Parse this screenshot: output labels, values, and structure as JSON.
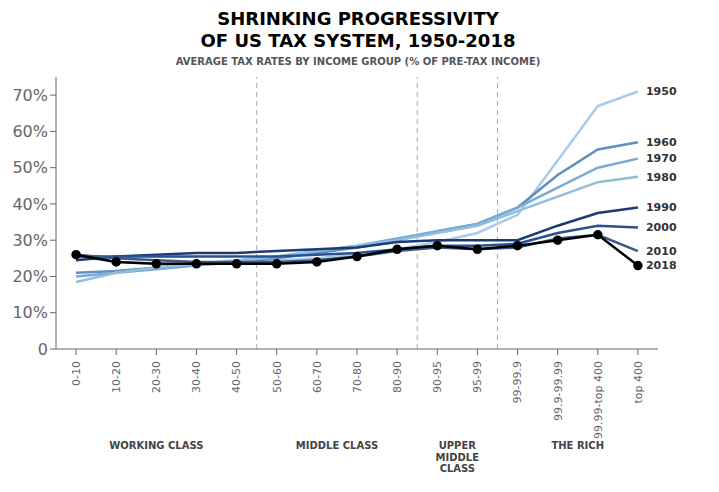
{
  "chart_data": {
    "type": "line",
    "title": "SHRINKING PROGRESSIVITY\nOF US TAX SYSTEM, 1950-2018",
    "subtitle": "AVERAGE TAX RATES BY INCOME GROUP (% OF PRE-TAX INCOME)",
    "annotations": [
      "WORKING CLASS",
      "MIDDLE CLASS",
      "UPPER\nMIDDLE\nCLASS",
      "THE RICH"
    ],
    "categories": [
      "0-10",
      "10-20",
      "20-30",
      "30-40",
      "40-50",
      "50-60",
      "60-70",
      "70-80",
      "80-90",
      "90-95",
      "95-99",
      "99-99.9",
      "99.9-99.99",
      "99.99-top 400",
      "top 400"
    ],
    "series": [
      {
        "name": "1950",
        "color": "#a8caec",
        "values": [
          25.5,
          24.0,
          23.5,
          23.5,
          23.5,
          24.5,
          25.0,
          26.0,
          27.5,
          29.5,
          32.0,
          37.0,
          52.0,
          67.0,
          71.0
        ]
      },
      {
        "name": "1960",
        "color": "#6090c0",
        "values": [
          21.0,
          21.5,
          22.5,
          23.5,
          24.0,
          25.0,
          26.5,
          28.0,
          30.0,
          32.5,
          34.5,
          39.0,
          48.0,
          55.0,
          57.0
        ]
      },
      {
        "name": "1970",
        "color": "#7aaad4",
        "values": [
          20.0,
          21.0,
          22.0,
          23.0,
          24.0,
          25.5,
          27.0,
          28.5,
          30.5,
          32.5,
          34.5,
          39.0,
          44.5,
          50.0,
          52.5
        ]
      },
      {
        "name": "1980",
        "color": "#90bedd",
        "values": [
          18.5,
          21.0,
          22.5,
          23.5,
          24.5,
          25.5,
          27.0,
          28.5,
          30.0,
          32.0,
          34.0,
          38.0,
          42.0,
          46.0,
          47.5
        ]
      },
      {
        "name": "1990",
        "color": "#1a3a78",
        "values": [
          24.5,
          25.5,
          26.0,
          26.5,
          26.5,
          27.0,
          27.5,
          28.0,
          29.5,
          30.0,
          30.0,
          30.0,
          34.0,
          37.5,
          39.0
        ]
      },
      {
        "name": "2000",
        "color": "#2a5090",
        "values": [
          25.5,
          25.5,
          25.5,
          25.5,
          25.5,
          25.5,
          26.0,
          26.5,
          27.5,
          28.5,
          28.5,
          29.0,
          32.0,
          34.0,
          33.5
        ]
      },
      {
        "name": "2010",
        "color": "#3a5a8a",
        "values": [
          26.0,
          25.0,
          24.5,
          24.0,
          24.0,
          24.0,
          24.5,
          25.5,
          27.0,
          28.0,
          27.5,
          28.0,
          30.5,
          31.5,
          27.0
        ]
      },
      {
        "name": "2018",
        "color": "#000000",
        "marker": "circle",
        "values": [
          26.0,
          24.0,
          23.5,
          23.5,
          23.5,
          23.5,
          24.0,
          25.5,
          27.5,
          28.5,
          27.5,
          28.5,
          30.0,
          31.5,
          23.0
        ]
      }
    ],
    "ylim": [
      0,
      75
    ],
    "yticks": [
      0,
      {
        "value": 10,
        "label": "10%"
      },
      {
        "value": 20,
        "label": "20%"
      },
      {
        "value": 30,
        "label": "30%"
      },
      {
        "value": 40,
        "label": "40%"
      },
      {
        "value": 50,
        "label": "50%"
      },
      {
        "value": 60,
        "label": "60%"
      },
      {
        "value": 70,
        "label": "70%"
      }
    ]
  }
}
